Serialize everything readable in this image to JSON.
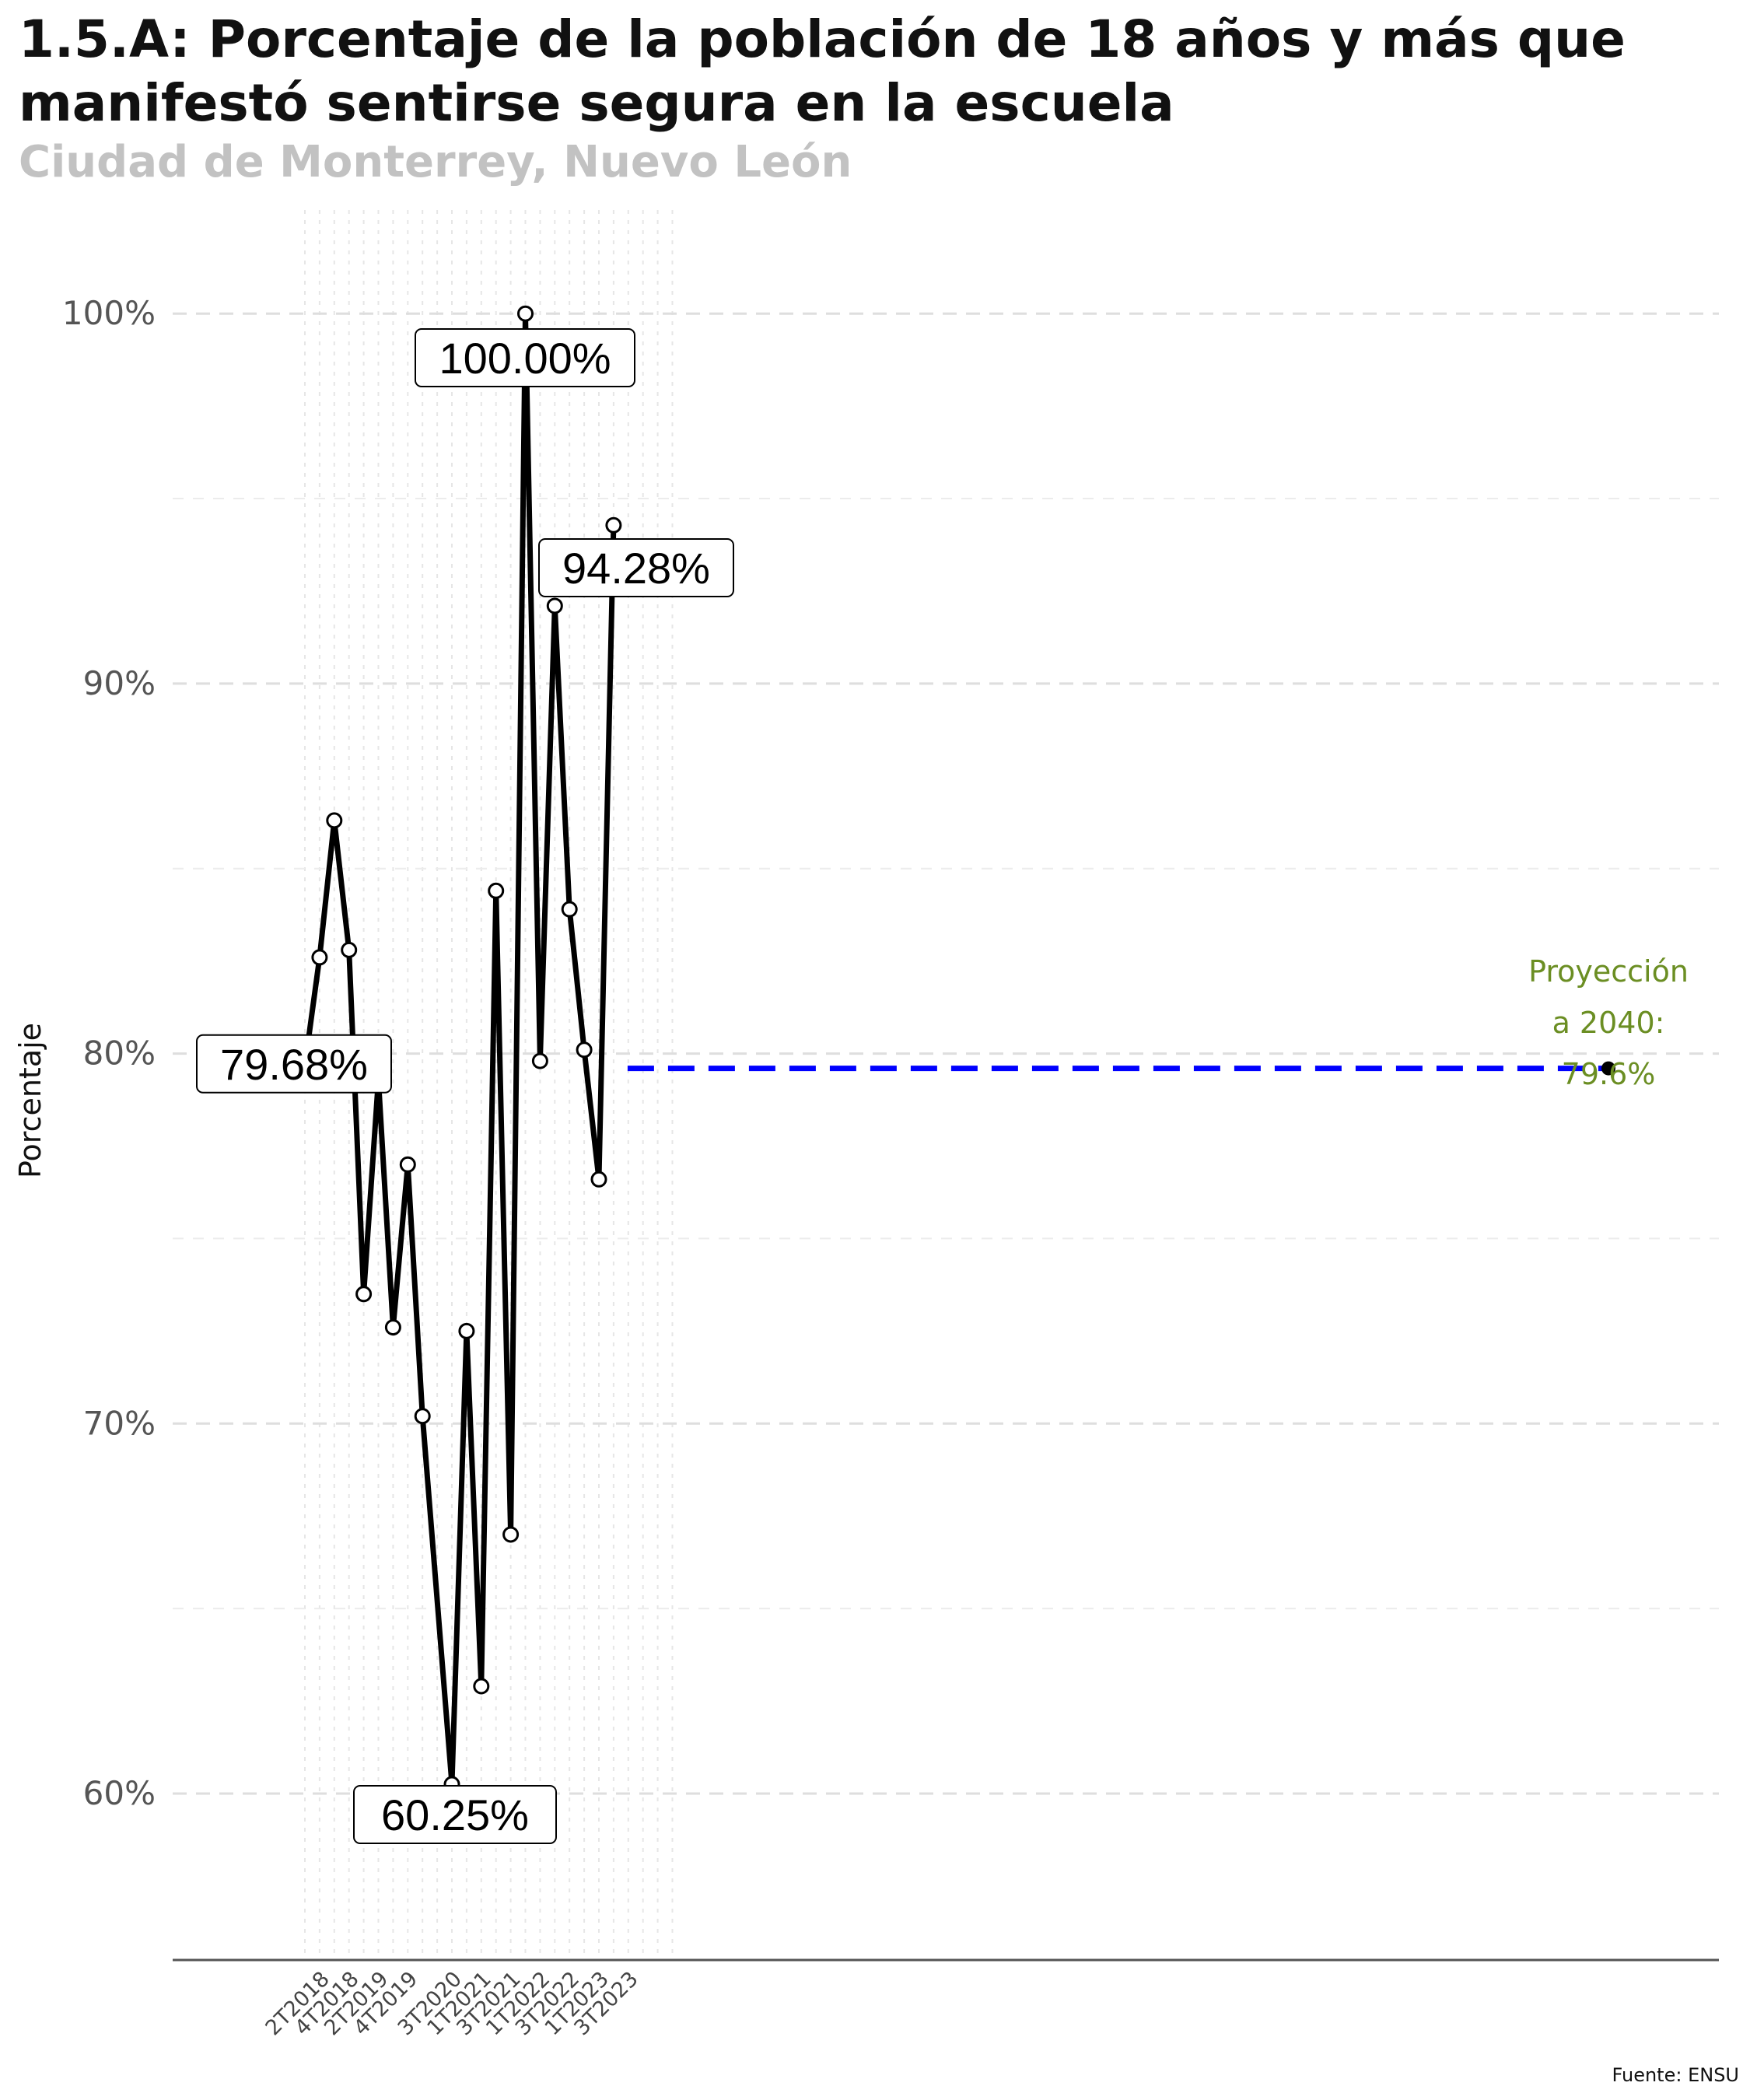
{
  "title": "1.5.A: Porcentaje de la población de 18 años y más que manifestó sentirse segura en la escuela",
  "subtitle": "Ciudad de Monterrey, Nuevo León",
  "caption": "Fuente: ENSU",
  "chart_data": {
    "type": "line",
    "ylabel": "Porcentaje",
    "xlabel": "",
    "ylim": [
      55.5,
      102.8
    ],
    "yticks": [
      60,
      70,
      80,
      90,
      100
    ],
    "ytick_labels": [
      "60%",
      "70%",
      "80%",
      "90%",
      "100%"
    ],
    "grid": true,
    "x_periods": [
      "1T2018",
      "2T2018",
      "3T2018",
      "4T2018",
      "1T2019",
      "2T2019",
      "3T2019",
      "4T2019",
      "1T2020",
      "2T2020",
      "3T2020",
      "4T2020",
      "1T2021",
      "2T2021",
      "3T2021",
      "4T2021",
      "1T2022",
      "2T2022",
      "3T2022",
      "4T2022",
      "1T2023",
      "2T2023",
      "3T2023",
      "4T2023",
      "1T2024",
      "2T2024"
    ],
    "xtick_labels": [
      "2T2018",
      "4T2018",
      "2T2019",
      "4T2019",
      "3T2020",
      "1T2021",
      "3T2021",
      "1T2022",
      "3T2022",
      "1T2023",
      "3T2023"
    ],
    "series": [
      {
        "values": [
          {
            "x": "1T2018",
            "y": 79.68
          },
          {
            "x": "2T2018",
            "y": 82.6
          },
          {
            "x": "3T2018",
            "y": 86.3
          },
          {
            "x": "4T2018",
            "y": 82.8
          },
          {
            "x": "1T2019",
            "y": 73.5
          },
          {
            "x": "2T2019",
            "y": 79.3
          },
          {
            "x": "3T2019",
            "y": 72.6
          },
          {
            "x": "4T2019",
            "y": 77.0
          },
          {
            "x": "1T2020",
            "y": 70.2
          },
          {
            "x": "3T2020",
            "y": 60.25
          },
          {
            "x": "4T2020",
            "y": 72.5
          },
          {
            "x": "1T2021",
            "y": 62.9
          },
          {
            "x": "2T2021",
            "y": 84.4
          },
          {
            "x": "3T2021",
            "y": 67.0
          },
          {
            "x": "4T2021",
            "y": 100.0
          },
          {
            "x": "1T2022",
            "y": 79.8
          },
          {
            "x": "2T2022",
            "y": 92.1
          },
          {
            "x": "3T2022",
            "y": 83.9
          },
          {
            "x": "4T2022",
            "y": 80.1
          },
          {
            "x": "1T2023",
            "y": 76.6
          },
          {
            "x": "2T2023",
            "y": 94.28
          }
        ]
      }
    ],
    "value_labels": [
      {
        "x": "1T2018",
        "text": "79.68%"
      },
      {
        "x": "3T2020",
        "text": "60.25%"
      },
      {
        "x": "4T2021",
        "text": "100.00%"
      },
      {
        "x": "2T2023",
        "text": "94.28%"
      }
    ],
    "projection": {
      "value": 79.6,
      "label_lines": [
        "Proyección",
        "a 2040:",
        "79.6%"
      ],
      "color": "#0000ff",
      "label_color": "#6b8e23"
    }
  }
}
